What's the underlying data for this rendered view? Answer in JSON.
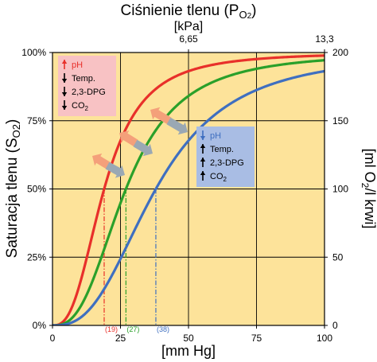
{
  "chart_data": {
    "type": "line",
    "title": "Ciśnienie tlenu (P",
    "title_sub": "O",
    "title_sub2": "2",
    "title_close": ")",
    "top_axis_unit": "[kPa]",
    "top_ticks": [
      {
        "label": "6,65",
        "mmhg": 50
      },
      {
        "label": "13,3",
        "mmhg": 100
      }
    ],
    "xlabel": "[mm Hg]",
    "x_ticks": [
      "0",
      "25",
      "50",
      "75",
      "100"
    ],
    "xlim": [
      0,
      100
    ],
    "ylabel_main": "Saturacja tlenu (S",
    "ylabel_sub": "O2",
    "ylabel_close": ")",
    "y_ticks": [
      "0%",
      "25%",
      "50%",
      "75%",
      "100%"
    ],
    "ylim": [
      0,
      100
    ],
    "y2label_main": "[ml O",
    "y2label_sub": "2",
    "y2label_close": "/l krwi]",
    "y2_ticks": [
      "0",
      "50",
      "100",
      "150",
      "200"
    ],
    "y2lim": [
      0,
      200
    ],
    "grid": true,
    "series": [
      {
        "p50": 19,
        "hill": 2.7,
        "color": "#e8302a",
        "p50_label": "(19)"
      },
      {
        "p50": 27,
        "hill": 2.7,
        "color": "#2aa02a",
        "p50_label": "(27)"
      },
      {
        "p50": 38,
        "hill": 2.7,
        "color": "#3f6fc0",
        "p50_label": "(38)"
      }
    ],
    "legend_left": {
      "color": "#f8c2c4",
      "items": [
        {
          "arrow": "up",
          "arrow_color": "#e8302a",
          "text": "pH",
          "text_color": "#e8302a"
        },
        {
          "arrow": "down",
          "arrow_color": "#000000",
          "text": "Temp.",
          "text_color": "#000000"
        },
        {
          "arrow": "down",
          "arrow_color": "#000000",
          "text": "2,3-DPG",
          "text_color": "#000000"
        },
        {
          "arrow": "down",
          "arrow_color": "#000000",
          "text": "CO2",
          "text_color": "#000000"
        }
      ]
    },
    "legend_right": {
      "color": "#a9bde4",
      "items": [
        {
          "arrow": "down",
          "arrow_color": "#3f6fc0",
          "text": "pH",
          "text_color": "#3f6fc0"
        },
        {
          "arrow": "up",
          "arrow_color": "#000000",
          "text": "Temp.",
          "text_color": "#000000"
        },
        {
          "arrow": "up",
          "arrow_color": "#000000",
          "text": "2,3-DPG",
          "text_color": "#000000"
        },
        {
          "arrow": "up",
          "arrow_color": "#000000",
          "text": "CO2",
          "text_color": "#000000"
        }
      ]
    },
    "shift_arrow_colors": {
      "left": "#f4a07a",
      "right": "#9aa8b4"
    },
    "plot_background": "#fde39a"
  }
}
